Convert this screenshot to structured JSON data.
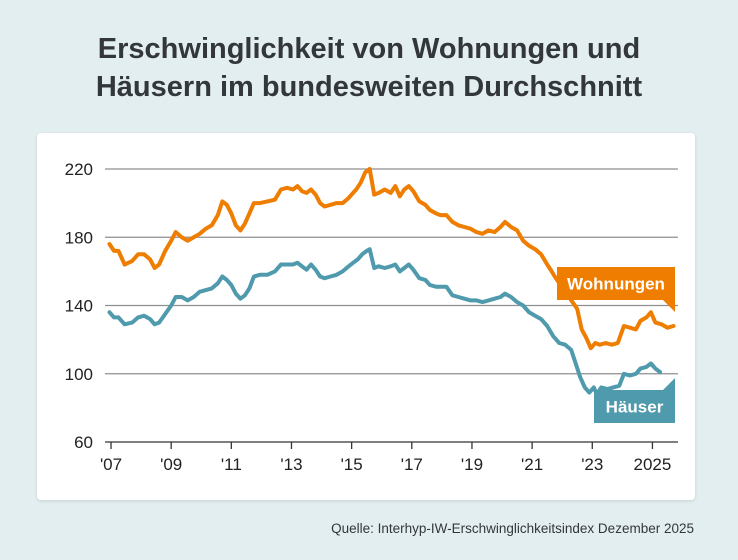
{
  "title": {
    "line1": "Erschwinglichkeit von Wohnungen und",
    "line2": "Häusern im bundesweiten Durchschnitt"
  },
  "source": "Quelle: Interhyp-IW-Erschwinglichkeitsindex Dezember 2025",
  "chart_data": {
    "type": "line",
    "title": "Erschwinglichkeit von Wohnungen und Häusern im bundesweiten Durchschnitt",
    "xlabel": "",
    "ylabel": "",
    "xlim": [
      2006.8,
      2025.85
    ],
    "ylim": [
      60,
      220
    ],
    "yticks": [
      60,
      100,
      140,
      180,
      220
    ],
    "xticks": [
      {
        "value": 2007,
        "label": "'07"
      },
      {
        "value": 2009,
        "label": "'09"
      },
      {
        "value": 2011,
        "label": "'11"
      },
      {
        "value": 2013,
        "label": "'13"
      },
      {
        "value": 2015,
        "label": "'15"
      },
      {
        "value": 2017,
        "label": "'17"
      },
      {
        "value": 2019,
        "label": "'19"
      },
      {
        "value": 2021,
        "label": "'21"
      },
      {
        "value": 2023,
        "label": "'23"
      },
      {
        "value": 2025,
        "label": "2025"
      }
    ],
    "grid": true,
    "legend": "direct labels at line ends",
    "series": [
      {
        "name": "Wohnungen",
        "color": "#ee7d00",
        "points": [
          [
            2006.95,
            176
          ],
          [
            2007.1,
            172
          ],
          [
            2007.25,
            172
          ],
          [
            2007.45,
            164
          ],
          [
            2007.7,
            166
          ],
          [
            2007.9,
            170
          ],
          [
            2008.1,
            170
          ],
          [
            2008.3,
            167
          ],
          [
            2008.45,
            162
          ],
          [
            2008.6,
            164
          ],
          [
            2008.8,
            172
          ],
          [
            2009.0,
            178
          ],
          [
            2009.15,
            183
          ],
          [
            2009.35,
            180
          ],
          [
            2009.55,
            178
          ],
          [
            2009.75,
            180
          ],
          [
            2009.95,
            182
          ],
          [
            2010.15,
            185
          ],
          [
            2010.35,
            187
          ],
          [
            2010.55,
            193
          ],
          [
            2010.7,
            201
          ],
          [
            2010.85,
            199
          ],
          [
            2011.0,
            194
          ],
          [
            2011.15,
            187
          ],
          [
            2011.3,
            184
          ],
          [
            2011.45,
            188
          ],
          [
            2011.6,
            194
          ],
          [
            2011.75,
            200
          ],
          [
            2011.95,
            200
          ],
          [
            2012.2,
            201
          ],
          [
            2012.45,
            202
          ],
          [
            2012.65,
            208
          ],
          [
            2012.85,
            209
          ],
          [
            2013.05,
            208
          ],
          [
            2013.2,
            210
          ],
          [
            2013.35,
            207
          ],
          [
            2013.5,
            206
          ],
          [
            2013.65,
            208
          ],
          [
            2013.8,
            205
          ],
          [
            2013.95,
            200
          ],
          [
            2014.1,
            198
          ],
          [
            2014.3,
            199
          ],
          [
            2014.5,
            200
          ],
          [
            2014.7,
            200
          ],
          [
            2014.9,
            203
          ],
          [
            2015.0,
            205
          ],
          [
            2015.15,
            208
          ],
          [
            2015.3,
            212
          ],
          [
            2015.45,
            218
          ],
          [
            2015.6,
            220
          ],
          [
            2015.75,
            205
          ],
          [
            2015.9,
            206
          ],
          [
            2016.1,
            208
          ],
          [
            2016.3,
            206
          ],
          [
            2016.45,
            210
          ],
          [
            2016.6,
            204
          ],
          [
            2016.75,
            208
          ],
          [
            2016.9,
            210
          ],
          [
            2017.05,
            207
          ],
          [
            2017.25,
            201
          ],
          [
            2017.45,
            199
          ],
          [
            2017.6,
            196
          ],
          [
            2017.8,
            194
          ],
          [
            2017.95,
            193
          ],
          [
            2018.15,
            193
          ],
          [
            2018.35,
            189
          ],
          [
            2018.55,
            187
          ],
          [
            2018.75,
            186
          ],
          [
            2018.95,
            185
          ],
          [
            2019.15,
            183
          ],
          [
            2019.35,
            182
          ],
          [
            2019.55,
            184
          ],
          [
            2019.75,
            183
          ],
          [
            2019.95,
            186
          ],
          [
            2020.1,
            189
          ],
          [
            2020.3,
            186
          ],
          [
            2020.5,
            184
          ],
          [
            2020.7,
            178
          ],
          [
            2020.9,
            175
          ],
          [
            2021.1,
            173
          ],
          [
            2021.3,
            170
          ],
          [
            2021.5,
            164
          ],
          [
            2021.65,
            160
          ],
          [
            2021.75,
            157
          ],
          [
            2022.5,
            138
          ],
          [
            2022.65,
            126
          ],
          [
            2022.8,
            121
          ],
          [
            2022.95,
            115
          ],
          [
            2023.1,
            118
          ],
          [
            2023.25,
            117
          ],
          [
            2023.45,
            118
          ],
          [
            2023.65,
            117
          ],
          [
            2023.85,
            118
          ],
          [
            2024.05,
            128
          ],
          [
            2024.25,
            127
          ],
          [
            2024.45,
            126
          ],
          [
            2024.6,
            131
          ],
          [
            2024.8,
            133
          ],
          [
            2024.95,
            136
          ],
          [
            2025.1,
            130
          ],
          [
            2025.3,
            129
          ],
          [
            2025.5,
            127
          ],
          [
            2025.7,
            128
          ]
        ]
      },
      {
        "name": "Häuser",
        "color": "#4f9aac",
        "points": [
          [
            2006.95,
            136
          ],
          [
            2007.1,
            133
          ],
          [
            2007.25,
            133
          ],
          [
            2007.45,
            129
          ],
          [
            2007.7,
            130
          ],
          [
            2007.9,
            133
          ],
          [
            2008.1,
            134
          ],
          [
            2008.3,
            132
          ],
          [
            2008.45,
            129
          ],
          [
            2008.6,
            130
          ],
          [
            2008.8,
            135
          ],
          [
            2009.0,
            140
          ],
          [
            2009.15,
            145
          ],
          [
            2009.35,
            145
          ],
          [
            2009.55,
            143
          ],
          [
            2009.75,
            145
          ],
          [
            2009.95,
            148
          ],
          [
            2010.15,
            149
          ],
          [
            2010.35,
            150
          ],
          [
            2010.55,
            153
          ],
          [
            2010.7,
            157
          ],
          [
            2010.85,
            155
          ],
          [
            2011.0,
            152
          ],
          [
            2011.15,
            147
          ],
          [
            2011.3,
            144
          ],
          [
            2011.45,
            146
          ],
          [
            2011.6,
            150
          ],
          [
            2011.75,
            157
          ],
          [
            2011.95,
            158
          ],
          [
            2012.2,
            158
          ],
          [
            2012.45,
            160
          ],
          [
            2012.65,
            164
          ],
          [
            2012.85,
            164
          ],
          [
            2013.05,
            164
          ],
          [
            2013.2,
            165
          ],
          [
            2013.35,
            163
          ],
          [
            2013.5,
            161
          ],
          [
            2013.65,
            164
          ],
          [
            2013.8,
            161
          ],
          [
            2013.95,
            157
          ],
          [
            2014.1,
            156
          ],
          [
            2014.3,
            157
          ],
          [
            2014.5,
            158
          ],
          [
            2014.7,
            160
          ],
          [
            2014.9,
            163
          ],
          [
            2015.05,
            165
          ],
          [
            2015.2,
            167
          ],
          [
            2015.35,
            170
          ],
          [
            2015.5,
            172
          ],
          [
            2015.6,
            173
          ],
          [
            2015.75,
            162
          ],
          [
            2015.9,
            163
          ],
          [
            2016.1,
            162
          ],
          [
            2016.3,
            163
          ],
          [
            2016.45,
            164
          ],
          [
            2016.6,
            160
          ],
          [
            2016.75,
            162
          ],
          [
            2016.9,
            164
          ],
          [
            2017.05,
            161
          ],
          [
            2017.25,
            156
          ],
          [
            2017.45,
            155
          ],
          [
            2017.6,
            152
          ],
          [
            2017.8,
            151
          ],
          [
            2017.95,
            151
          ],
          [
            2018.15,
            151
          ],
          [
            2018.35,
            146
          ],
          [
            2018.55,
            145
          ],
          [
            2018.75,
            144
          ],
          [
            2018.95,
            143
          ],
          [
            2019.15,
            143
          ],
          [
            2019.35,
            142
          ],
          [
            2019.55,
            143
          ],
          [
            2019.75,
            144
          ],
          [
            2019.95,
            145
          ],
          [
            2020.1,
            147
          ],
          [
            2020.3,
            145
          ],
          [
            2020.5,
            142
          ],
          [
            2020.7,
            140
          ],
          [
            2020.9,
            136
          ],
          [
            2021.1,
            134
          ],
          [
            2021.3,
            132
          ],
          [
            2021.5,
            128
          ],
          [
            2021.7,
            122
          ],
          [
            2021.9,
            118
          ],
          [
            2022.1,
            117
          ],
          [
            2022.3,
            114
          ],
          [
            2022.45,
            106
          ],
          [
            2022.6,
            98
          ],
          [
            2022.75,
            92
          ],
          [
            2022.9,
            89
          ],
          [
            2023.05,
            92
          ],
          [
            2023.15,
            88
          ],
          [
            2023.3,
            92
          ],
          [
            2023.5,
            91
          ],
          [
            2023.7,
            92
          ],
          [
            2023.9,
            93
          ],
          [
            2024.05,
            100
          ],
          [
            2024.25,
            99
          ],
          [
            2024.45,
            100
          ],
          [
            2024.6,
            103
          ],
          [
            2024.8,
            104
          ],
          [
            2024.95,
            106
          ],
          [
            2025.1,
            103
          ],
          [
            2025.25,
            101
          ]
        ]
      }
    ]
  }
}
